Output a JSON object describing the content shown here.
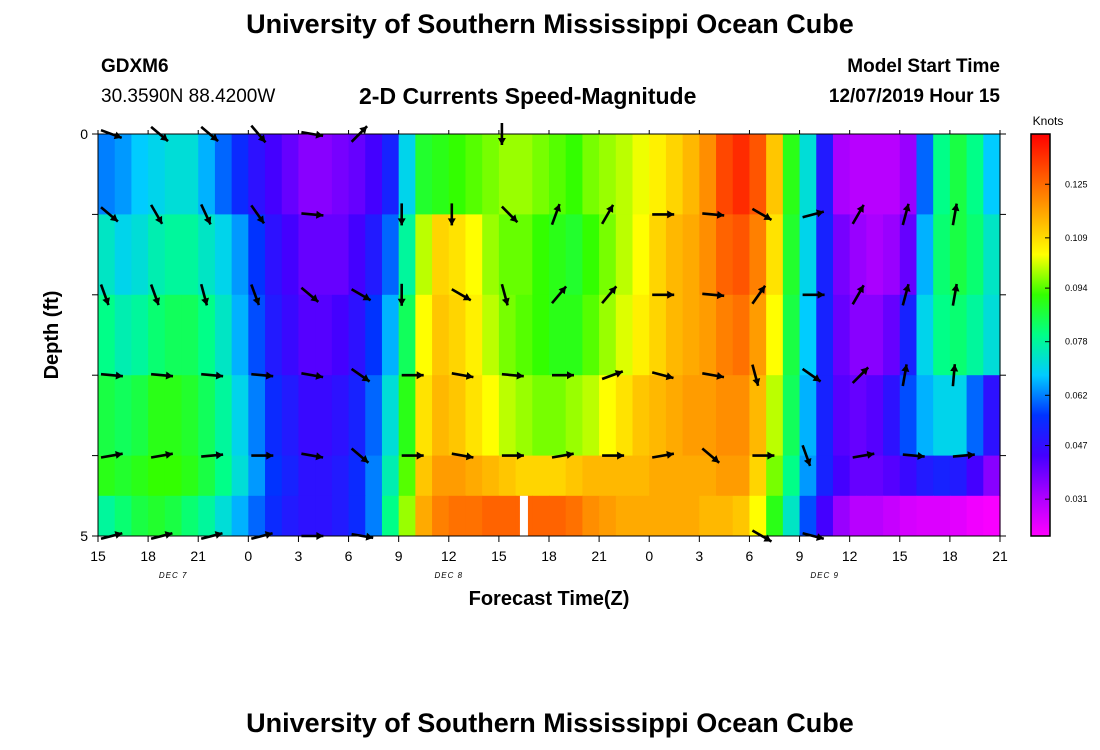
{
  "header": {
    "title": "University of Southern Mississippi Ocean Cube",
    "station_id": "GDXM6",
    "coords": "30.3590N 88.4200W",
    "subtitle": "2-D Currents Speed-Magnitude",
    "start_label": "Model Start Time",
    "start_value": "12/07/2019 Hour 15"
  },
  "footer": {
    "title": "University of Southern Mississippi Ocean Cube"
  },
  "chart_data": {
    "type": "heatmap",
    "title": "2-D Currents Speed-Magnitude",
    "xlabel": "Forecast Time(Z)",
    "ylabel": "Depth (ft)",
    "x_ticks": [
      "15",
      "18",
      "21",
      "0",
      "3",
      "6",
      "9",
      "12",
      "15",
      "18",
      "21",
      "0",
      "3",
      "6",
      "9",
      "12",
      "15",
      "18",
      "21"
    ],
    "x_range_hours": [
      0,
      54
    ],
    "date_labels": [
      {
        "label": "DEC 7",
        "hour": 4.5
      },
      {
        "label": "DEC 8",
        "hour": 21
      },
      {
        "label": "DEC 9",
        "hour": 43.5
      }
    ],
    "y_ticks": [
      "0",
      "5"
    ],
    "y_range": [
      0,
      5
    ],
    "colorbar": {
      "title": "Knots",
      "ticks": [
        0.031,
        0.047,
        0.062,
        0.078,
        0.094,
        0.109,
        0.125
      ],
      "range": [
        0.02,
        0.14
      ],
      "colors": [
        "#ff00ff",
        "#aa00ff",
        "#4400ff",
        "#0033ff",
        "#00ccff",
        "#00ff88",
        "#33ff00",
        "#ffff00",
        "#ffaa00",
        "#ff5500",
        "#ff0000"
      ]
    },
    "time_hours": [
      0,
      1,
      2,
      3,
      4,
      5,
      6,
      7,
      8,
      9,
      10,
      11,
      12,
      13,
      14,
      15,
      16,
      17,
      18,
      19,
      20,
      21,
      22,
      23,
      24,
      25,
      26,
      27,
      28,
      29,
      30,
      31,
      32,
      33,
      34,
      35,
      36,
      37,
      38,
      39,
      40,
      41,
      42,
      43,
      44,
      45,
      46,
      47,
      48,
      49,
      50,
      51,
      52,
      53
    ],
    "depth_layers": [
      "0-1",
      "1-2",
      "2-3",
      "3-4",
      "4-4.5",
      "4.5-5"
    ],
    "speed_knots": [
      [
        0.062,
        0.064,
        0.068,
        0.07,
        0.072,
        0.072,
        0.066,
        0.06,
        0.054,
        0.048,
        0.044,
        0.04,
        0.036,
        0.036,
        0.038,
        0.04,
        0.044,
        0.052,
        0.07,
        0.088,
        0.09,
        0.092,
        0.094,
        0.096,
        0.098,
        0.098,
        0.096,
        0.094,
        0.092,
        0.096,
        0.098,
        0.1,
        0.103,
        0.106,
        0.11,
        0.114,
        0.12,
        0.13,
        0.134,
        0.128,
        0.112,
        0.09,
        0.072,
        0.05,
        0.032,
        0.03,
        0.03,
        0.03,
        0.034,
        0.06,
        0.08,
        0.086,
        0.08,
        0.068
      ],
      [
        0.074,
        0.07,
        0.072,
        0.076,
        0.078,
        0.078,
        0.074,
        0.07,
        0.064,
        0.056,
        0.048,
        0.044,
        0.04,
        0.04,
        0.04,
        0.044,
        0.05,
        0.06,
        0.078,
        0.1,
        0.11,
        0.108,
        0.104,
        0.098,
        0.095,
        0.095,
        0.092,
        0.09,
        0.088,
        0.092,
        0.096,
        0.1,
        0.104,
        0.11,
        0.114,
        0.116,
        0.12,
        0.126,
        0.128,
        0.122,
        0.108,
        0.088,
        0.07,
        0.052,
        0.038,
        0.034,
        0.032,
        0.034,
        0.04,
        0.066,
        0.082,
        0.086,
        0.082,
        0.074
      ],
      [
        0.08,
        0.076,
        0.078,
        0.082,
        0.084,
        0.084,
        0.08,
        0.074,
        0.066,
        0.058,
        0.05,
        0.046,
        0.042,
        0.042,
        0.044,
        0.048,
        0.056,
        0.066,
        0.084,
        0.104,
        0.112,
        0.11,
        0.106,
        0.1,
        0.096,
        0.094,
        0.092,
        0.09,
        0.09,
        0.094,
        0.098,
        0.102,
        0.106,
        0.11,
        0.114,
        0.116,
        0.118,
        0.122,
        0.124,
        0.118,
        0.104,
        0.086,
        0.068,
        0.052,
        0.04,
        0.036,
        0.036,
        0.04,
        0.052,
        0.07,
        0.08,
        0.082,
        0.078,
        0.072
      ],
      [
        0.086,
        0.084,
        0.086,
        0.09,
        0.09,
        0.088,
        0.084,
        0.078,
        0.07,
        0.062,
        0.054,
        0.05,
        0.046,
        0.046,
        0.048,
        0.052,
        0.06,
        0.072,
        0.09,
        0.108,
        0.114,
        0.112,
        0.108,
        0.104,
        0.1,
        0.098,
        0.096,
        0.096,
        0.098,
        0.1,
        0.104,
        0.108,
        0.112,
        0.114,
        0.116,
        0.118,
        0.118,
        0.12,
        0.12,
        0.114,
        0.1,
        0.084,
        0.066,
        0.052,
        0.042,
        0.04,
        0.042,
        0.048,
        0.058,
        0.066,
        0.07,
        0.07,
        0.06,
        0.048
      ],
      [
        0.09,
        0.088,
        0.09,
        0.092,
        0.092,
        0.09,
        0.086,
        0.08,
        0.072,
        0.064,
        0.056,
        0.052,
        0.048,
        0.048,
        0.05,
        0.054,
        0.062,
        0.076,
        0.094,
        0.112,
        0.118,
        0.118,
        0.116,
        0.114,
        0.112,
        0.11,
        0.11,
        0.11,
        0.112,
        0.114,
        0.114,
        0.114,
        0.114,
        0.116,
        0.116,
        0.116,
        0.116,
        0.118,
        0.118,
        0.11,
        0.096,
        0.08,
        0.064,
        0.052,
        0.044,
        0.04,
        0.04,
        0.042,
        0.046,
        0.05,
        0.052,
        0.05,
        0.044,
        0.036
      ],
      [
        0.078,
        0.082,
        0.086,
        0.088,
        0.086,
        0.082,
        0.078,
        0.072,
        0.066,
        0.06,
        0.054,
        0.05,
        0.048,
        0.048,
        0.05,
        0.054,
        0.062,
        0.08,
        0.098,
        0.116,
        0.122,
        0.124,
        0.124,
        0.126,
        0.126,
        0.126,
        0.126,
        0.126,
        0.124,
        0.12,
        0.118,
        0.116,
        0.116,
        0.116,
        0.116,
        0.116,
        0.114,
        0.114,
        0.112,
        0.104,
        0.09,
        0.074,
        0.058,
        0.044,
        0.034,
        0.03,
        0.03,
        0.028,
        0.026,
        0.025,
        0.025,
        0.024,
        0.022,
        0.021
      ]
    ],
    "missing_cells": [
      {
        "hour": 25.5,
        "layer": "4.5-5"
      }
    ],
    "vectors": {
      "hours": [
        0,
        3,
        6,
        9,
        12,
        15,
        18,
        21,
        24,
        27,
        30,
        33,
        36,
        39,
        42,
        45,
        48,
        51,
        54
      ],
      "depths": [
        0,
        1,
        2,
        3,
        4,
        5
      ],
      "angles_deg": [
        [
          110,
          130,
          130,
          140,
          100,
          45,
          null,
          null,
          180,
          null,
          null,
          null,
          null,
          null,
          null,
          null,
          null,
          null,
          null
        ],
        [
          130,
          150,
          155,
          145,
          95,
          null,
          180,
          180,
          135,
          20,
          30,
          90,
          95,
          120,
          75,
          30,
          15,
          10,
          null
        ],
        [
          160,
          160,
          165,
          160,
          130,
          120,
          180,
          120,
          165,
          40,
          40,
          90,
          95,
          35,
          90,
          30,
          15,
          10,
          null
        ],
        [
          95,
          95,
          95,
          95,
          100,
          125,
          90,
          100,
          95,
          90,
          70,
          105,
          100,
          165,
          125,
          45,
          10,
          5,
          null
        ],
        [
          80,
          80,
          85,
          90,
          100,
          130,
          90,
          100,
          90,
          80,
          90,
          80,
          130,
          90,
          160,
          80,
          95,
          85,
          null
        ],
        [
          75,
          75,
          75,
          75,
          90,
          100,
          null,
          null,
          null,
          null,
          null,
          null,
          null,
          120,
          105,
          null,
          null,
          null,
          null
        ]
      ]
    }
  }
}
